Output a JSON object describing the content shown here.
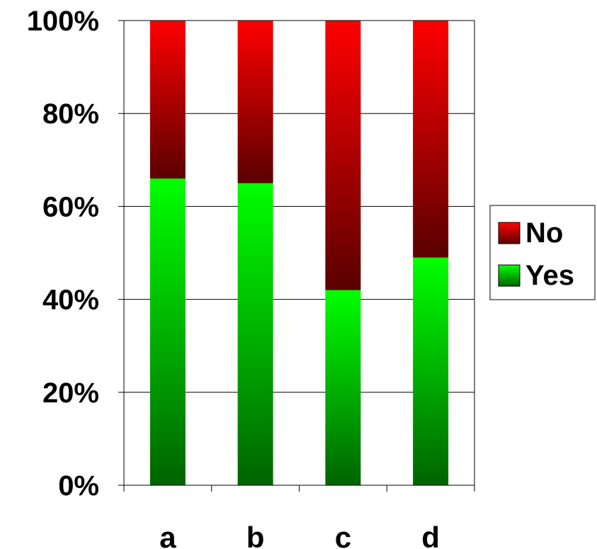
{
  "chart_data": {
    "type": "bar",
    "stacked": true,
    "percent_stacked": true,
    "categories": [
      "a",
      "b",
      "c",
      "d"
    ],
    "series": [
      {
        "name": "Yes",
        "values": [
          66,
          65,
          42,
          49
        ],
        "color": "#00ff00",
        "color_dark": "#006400"
      },
      {
        "name": "No",
        "values": [
          34,
          35,
          58,
          51
        ],
        "color": "#ff0000",
        "color_dark": "#5a0000"
      }
    ],
    "ylim": [
      0,
      100
    ],
    "yticks": [
      "0%",
      "20%",
      "40%",
      "60%",
      "80%",
      "100%"
    ],
    "ytick_values": [
      0,
      20,
      40,
      60,
      80,
      100
    ],
    "grid": true,
    "legend_position": "right",
    "legend_order": [
      "No",
      "Yes"
    ],
    "title": "",
    "xlabel": "",
    "ylabel": ""
  }
}
